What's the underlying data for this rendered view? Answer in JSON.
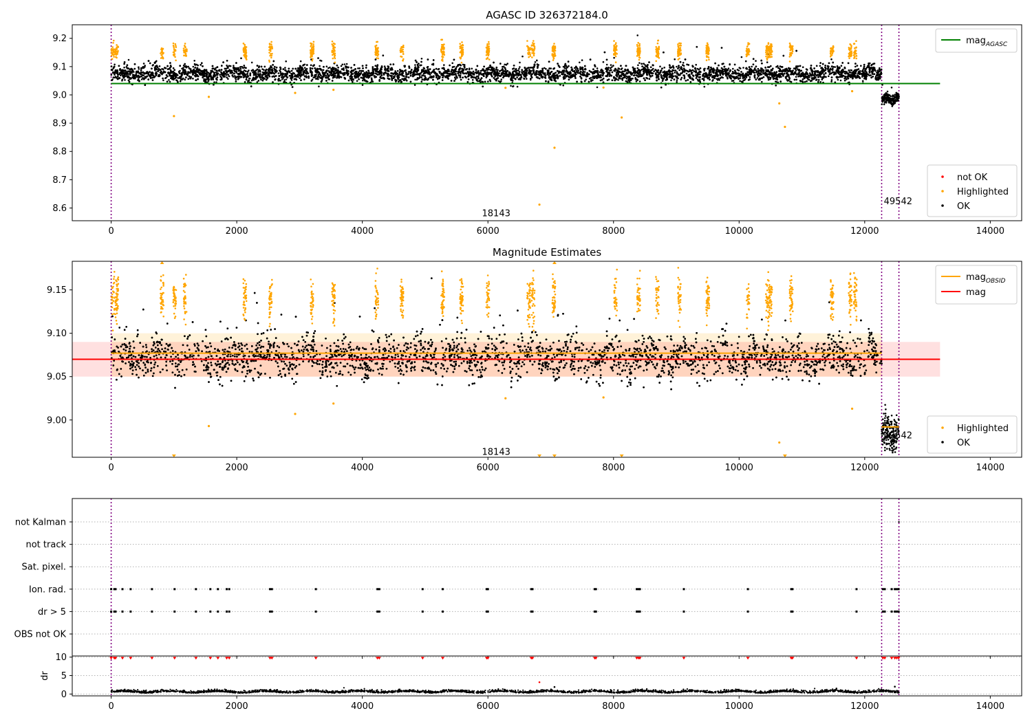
{
  "chart_data": [
    {
      "type": "scatter",
      "title": "AGASC ID 326372184.0",
      "xlim": [
        -620,
        14500
      ],
      "ylim": [
        8.555,
        9.248
      ],
      "xticks": [
        0,
        2000,
        4000,
        6000,
        8000,
        10000,
        12000,
        14000
      ],
      "yticks": [
        8.6,
        8.7,
        8.8,
        8.9,
        9.0,
        9.1,
        9.2
      ],
      "tick_decimals": 1,
      "vlines": [
        0,
        12270,
        12545
      ],
      "obsid_annotations": [
        {
          "x": 6000,
          "y": 8.58,
          "label": "18143"
        },
        {
          "x": 12400,
          "y": 8.623,
          "label": "49542"
        }
      ],
      "hlines": [
        {
          "name": "mag_AGASC",
          "y": 9.04,
          "x0": 0,
          "x1": 13200,
          "color": "#008000"
        }
      ],
      "scatter_series": [
        {
          "name": "not OK",
          "color": "#ff0000",
          "points": []
        },
        {
          "name": "Highlighted",
          "color": "#ffa500"
        },
        {
          "name": "OK",
          "color": "#000000"
        }
      ],
      "legend_lines": [
        {
          "label": "mag",
          "sub": "AGASC",
          "color": "#008000",
          "loc": "upper right"
        }
      ],
      "legend_points": [
        {
          "label": "not OK",
          "color": "#ff0000"
        },
        {
          "label": "Highlighted",
          "color": "#ffa500"
        },
        {
          "label": "OK",
          "color": "#000000"
        }
      ],
      "segments": [
        {
          "x0": 0,
          "x1": 12270,
          "mean": 9.075,
          "spread": 0.014,
          "highlight": 9.155
        },
        {
          "x0": 12270,
          "x1": 12545,
          "mean": 8.99,
          "spread": 0.009,
          "highlight": null
        }
      ],
      "outliers": [
        {
          "x": 1000,
          "y": 8.925
        },
        {
          "x": 1555,
          "y": 8.993
        },
        {
          "x": 2930,
          "y": 9.007
        },
        {
          "x": 3540,
          "y": 9.018
        },
        {
          "x": 6280,
          "y": 9.025
        },
        {
          "x": 6820,
          "y": 8.612
        },
        {
          "x": 7060,
          "y": 8.813
        },
        {
          "x": 7840,
          "y": 9.026
        },
        {
          "x": 8130,
          "y": 8.92
        },
        {
          "x": 10640,
          "y": 8.97
        },
        {
          "x": 10730,
          "y": 8.887
        },
        {
          "x": 11800,
          "y": 9.013
        }
      ]
    },
    {
      "type": "scatter",
      "title": "Magnitude Estimates",
      "xlim": [
        -620,
        14500
      ],
      "ylim": [
        8.957,
        9.183
      ],
      "xticks": [
        0,
        2000,
        4000,
        6000,
        8000,
        10000,
        12000,
        14000
      ],
      "yticks": [
        9.0,
        9.05,
        9.1,
        9.15
      ],
      "tick_decimals": 2,
      "vlines": [
        0,
        12270,
        12545
      ],
      "obsid_annotations": [
        {
          "x": 6000,
          "y": 8.963,
          "label": "18143"
        },
        {
          "x": 12400,
          "y": 8.982,
          "label": "49542"
        }
      ],
      "bands": [
        {
          "y0": 9.05,
          "y1": 9.1,
          "x0": 0,
          "x1": 12270,
          "color": "#ffa500",
          "opacity": 0.15
        },
        {
          "y0": 9.05,
          "y1": 9.09,
          "x0": -620,
          "x1": 13200,
          "color": "#ff0000",
          "opacity": 0.12
        }
      ],
      "hlines": [
        {
          "name": "mag_OBSID",
          "y": 9.077,
          "x0": 0,
          "x1": 12270,
          "color": "#ffa500"
        },
        {
          "name": "mag_OBSID",
          "y": 8.992,
          "x0": 12270,
          "x1": 12545,
          "color": "#ffa500"
        },
        {
          "name": "mag",
          "y": 9.07,
          "x0": -620,
          "x1": 13200,
          "color": "#ff0000"
        }
      ],
      "scatter_series": [
        {
          "name": "Highlighted",
          "color": "#ffa500"
        },
        {
          "name": "OK",
          "color": "#000000"
        }
      ],
      "legend_lines": [
        {
          "label": "mag",
          "sub": "OBSID",
          "color": "#ffa500"
        },
        {
          "label": "mag",
          "sub": "",
          "color": "#ff0000"
        }
      ],
      "legend_points": [
        {
          "label": "Highlighted",
          "color": "#ffa500"
        },
        {
          "label": "OK",
          "color": "#000000"
        }
      ],
      "segments": [
        {
          "x0": 0,
          "x1": 12270,
          "mean": 9.072,
          "spread": 0.011,
          "highlight": 9.14
        },
        {
          "x0": 12270,
          "x1": 12545,
          "mean": 8.99,
          "spread": 0.011,
          "highlight": null
        }
      ],
      "outliers": [
        {
          "x": 1555,
          "y": 8.993
        },
        {
          "x": 2930,
          "y": 9.007
        },
        {
          "x": 3540,
          "y": 9.019
        },
        {
          "x": 6280,
          "y": 9.025
        },
        {
          "x": 7840,
          "y": 9.026
        },
        {
          "x": 10640,
          "y": 8.974
        },
        {
          "x": 11800,
          "y": 9.013
        }
      ],
      "clipped_markers": [
        {
          "x": 1000,
          "edge": "bottom"
        },
        {
          "x": 6820,
          "edge": "bottom"
        },
        {
          "x": 7060,
          "edge": "bottom"
        },
        {
          "x": 8130,
          "edge": "bottom"
        },
        {
          "x": 10730,
          "edge": "bottom"
        },
        {
          "x": 810,
          "edge": "top"
        },
        {
          "x": 7060,
          "edge": "top"
        }
      ]
    },
    {
      "type": "scatter",
      "title": "",
      "xlim": [
        -620,
        14500
      ],
      "xticks": [
        0,
        2000,
        4000,
        6000,
        8000,
        10000,
        12000,
        14000
      ],
      "flag_categories": [
        "not Kalman",
        "not track",
        "Sat. pixel.",
        "Ion. rad.",
        "dr > 5",
        "OBS not OK"
      ],
      "flag_events": [
        0,
        50,
        70,
        180,
        310,
        650,
        1010,
        1350,
        1580,
        1700,
        1840,
        1880,
        2530,
        2560,
        3260,
        4240,
        4270,
        4960,
        5280,
        5980,
        6000,
        6690,
        6710,
        7700,
        7720,
        8370,
        8400,
        8420,
        9120,
        10140,
        10830,
        10850,
        11870,
        12290,
        12320,
        12430,
        12480,
        12510,
        12540
      ],
      "vlines": [
        0,
        12270,
        12545
      ]
    },
    {
      "type": "scatter",
      "title": "",
      "ylabel": "dr",
      "xlim": [
        -620,
        14500
      ],
      "ylim": [
        -0.5,
        10.3
      ],
      "xticks": [
        0,
        2000,
        4000,
        6000,
        8000,
        10000,
        12000,
        14000
      ],
      "yticks": [
        0,
        5,
        10
      ],
      "vlines": [
        0,
        12270,
        12545
      ],
      "clipped_value": 9.7,
      "extra_points": [
        {
          "x": 6820,
          "y": 3.2,
          "color": "#ff0000"
        },
        {
          "x": 7060,
          "y": 1.9,
          "color": "#000000"
        },
        {
          "x": 11550,
          "y": 1.5,
          "color": "#000000"
        },
        {
          "x": 12480,
          "y": 2.0,
          "color": "#000000"
        }
      ]
    }
  ]
}
